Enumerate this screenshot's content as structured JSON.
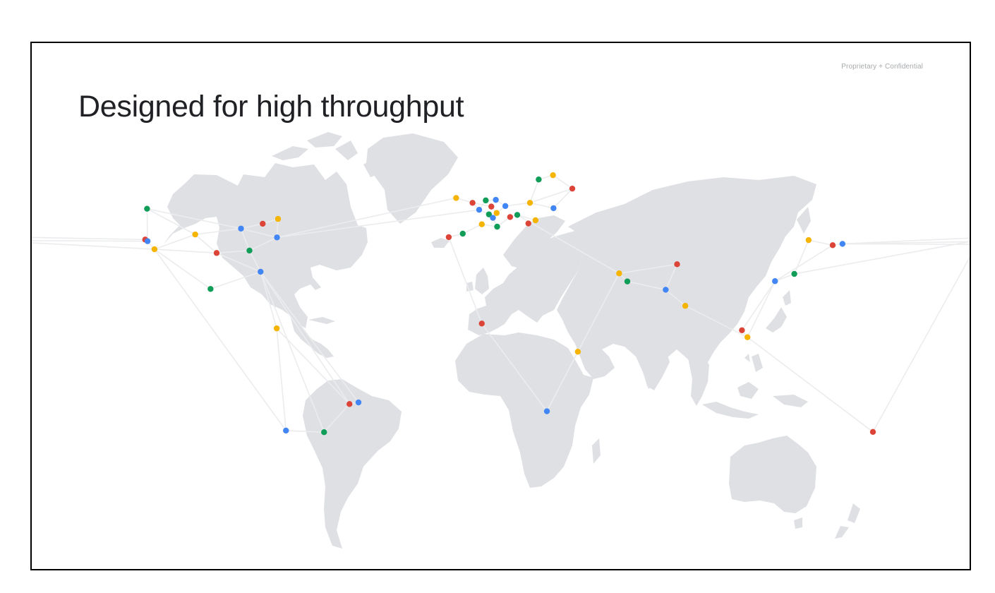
{
  "header": {
    "confidential": "Proprietary + Confidential",
    "title": "Designed for high throughput"
  },
  "map": {
    "colors": {
      "red": "#db4437",
      "blue": "#4285f4",
      "green": "#0f9d58",
      "yellow": "#f4b400",
      "land": "#dfe0e3",
      "link": "#ebecee"
    },
    "nodes": [
      {
        "id": "n0",
        "lon": -123.1,
        "lat": 49.3,
        "color": "green"
      },
      {
        "id": "n1",
        "lon": -123.8,
        "lat": 37.8,
        "color": "red"
      },
      {
        "id": "n2",
        "lon": -122.9,
        "lat": 37.2,
        "color": "blue"
      },
      {
        "id": "n3",
        "lon": -120.3,
        "lat": 34.2,
        "color": "yellow"
      },
      {
        "id": "n4",
        "lon": -104.9,
        "lat": 39.7,
        "color": "yellow"
      },
      {
        "id": "n5",
        "lon": -96.8,
        "lat": 32.8,
        "color": "red"
      },
      {
        "id": "n6",
        "lon": -87.6,
        "lat": 41.9,
        "color": "blue"
      },
      {
        "id": "n7",
        "lon": -84.4,
        "lat": 33.7,
        "color": "green"
      },
      {
        "id": "n8",
        "lon": -80.2,
        "lat": 25.8,
        "color": "blue"
      },
      {
        "id": "n9",
        "lon": -79.4,
        "lat": 43.7,
        "color": "red"
      },
      {
        "id": "n10",
        "lon": -73.6,
        "lat": 45.5,
        "color": "yellow"
      },
      {
        "id": "n11",
        "lon": -74.0,
        "lat": 38.6,
        "color": "blue"
      },
      {
        "id": "n12",
        "lon": -99.1,
        "lat": 19.4,
        "color": "green"
      },
      {
        "id": "n13",
        "lon": -74.1,
        "lat": 4.7,
        "color": "yellow"
      },
      {
        "id": "n14",
        "lon": -46.6,
        "lat": -23.5,
        "color": "red"
      },
      {
        "id": "n15",
        "lon": -43.2,
        "lat": -22.9,
        "color": "blue"
      },
      {
        "id": "n16",
        "lon": -70.6,
        "lat": -33.4,
        "color": "blue"
      },
      {
        "id": "n17",
        "lon": -56.2,
        "lat": -34.0,
        "color": "green"
      },
      {
        "id": "n18",
        "lon": -6.3,
        "lat": 53.3,
        "color": "yellow"
      },
      {
        "id": "n19",
        "lon": -0.1,
        "lat": 51.5,
        "color": "red"
      },
      {
        "id": "n20",
        "lon": 2.4,
        "lat": 48.9,
        "color": "blue"
      },
      {
        "id": "n21",
        "lon": 4.9,
        "lat": 52.4,
        "color": "green"
      },
      {
        "id": "n22",
        "lon": 8.7,
        "lat": 52.6,
        "color": "blue"
      },
      {
        "id": "n23",
        "lon": 7.0,
        "lat": 50.1,
        "color": "red"
      },
      {
        "id": "n24",
        "lon": 6.1,
        "lat": 47.2,
        "color": "green"
      },
      {
        "id": "n25",
        "lon": 9.0,
        "lat": 47.7,
        "color": "yellow"
      },
      {
        "id": "n26",
        "lon": 7.6,
        "lat": 45.9,
        "color": "blue"
      },
      {
        "id": "n27",
        "lon": 3.4,
        "lat": 43.5,
        "color": "yellow"
      },
      {
        "id": "n28",
        "lon": 9.2,
        "lat": 42.6,
        "color": "green"
      },
      {
        "id": "n29",
        "lon": 12.3,
        "lat": 50.3,
        "color": "blue"
      },
      {
        "id": "n30",
        "lon": 14.1,
        "lat": 46.2,
        "color": "red"
      },
      {
        "id": "n31",
        "lon": 16.8,
        "lat": 47.0,
        "color": "green"
      },
      {
        "id": "n32",
        "lon": 21.6,
        "lat": 51.5,
        "color": "yellow"
      },
      {
        "id": "n33",
        "lon": 24.9,
        "lat": 60.2,
        "color": "green"
      },
      {
        "id": "n34",
        "lon": 30.3,
        "lat": 61.8,
        "color": "yellow"
      },
      {
        "id": "n35",
        "lon": 37.6,
        "lat": 56.8,
        "color": "red"
      },
      {
        "id": "n36",
        "lon": 30.5,
        "lat": 49.5,
        "color": "blue"
      },
      {
        "id": "n37",
        "lon": 23.7,
        "lat": 45.0,
        "color": "yellow"
      },
      {
        "id": "n38",
        "lon": 21.0,
        "lat": 43.8,
        "color": "red"
      },
      {
        "id": "n39",
        "lon": -9.1,
        "lat": 38.7,
        "color": "red"
      },
      {
        "id": "n40",
        "lon": -3.8,
        "lat": 40.0,
        "color": "green"
      },
      {
        "id": "n41",
        "lon": 3.4,
        "lat": 6.5,
        "color": "red"
      },
      {
        "id": "n42",
        "lon": 39.7,
        "lat": -4.0,
        "color": "yellow"
      },
      {
        "id": "n43",
        "lon": 28.0,
        "lat": -26.2,
        "color": "blue"
      },
      {
        "id": "n44",
        "lon": 55.3,
        "lat": 25.2,
        "color": "yellow"
      },
      {
        "id": "n45",
        "lon": 58.4,
        "lat": 22.2,
        "color": "green"
      },
      {
        "id": "n46",
        "lon": 72.9,
        "lat": 19.1,
        "color": "blue"
      },
      {
        "id": "n47",
        "lon": 77.2,
        "lat": 28.6,
        "color": "red"
      },
      {
        "id": "n48",
        "lon": 80.3,
        "lat": 13.1,
        "color": "yellow"
      },
      {
        "id": "n49",
        "lon": 101.7,
        "lat": 4.0,
        "color": "red"
      },
      {
        "id": "n50",
        "lon": 103.8,
        "lat": 1.4,
        "color": "yellow"
      },
      {
        "id": "n51",
        "lon": 114.2,
        "lat": 22.3,
        "color": "blue"
      },
      {
        "id": "n52",
        "lon": 121.5,
        "lat": 25.0,
        "color": "green"
      },
      {
        "id": "n53",
        "lon": 126.9,
        "lat": 37.6,
        "color": "yellow"
      },
      {
        "id": "n54",
        "lon": 136.0,
        "lat": 35.7,
        "color": "red"
      },
      {
        "id": "n55",
        "lon": 139.7,
        "lat": 36.2,
        "color": "blue"
      },
      {
        "id": "n56",
        "lon": 151.2,
        "lat": -33.9,
        "color": "red"
      }
    ],
    "links": [
      [
        "n0",
        "n2"
      ],
      [
        "n0",
        "n4"
      ],
      [
        "n0",
        "n6"
      ],
      [
        "n2",
        "n3"
      ],
      [
        "n3",
        "n4"
      ],
      [
        "n3",
        "n5"
      ],
      [
        "n4",
        "n6"
      ],
      [
        "n4",
        "n5"
      ],
      [
        "n5",
        "n7"
      ],
      [
        "n6",
        "n7"
      ],
      [
        "n6",
        "n9"
      ],
      [
        "n9",
        "n10"
      ],
      [
        "n10",
        "n11"
      ],
      [
        "n6",
        "n11"
      ],
      [
        "n7",
        "n11"
      ],
      [
        "n7",
        "n8"
      ],
      [
        "n5",
        "n8"
      ],
      [
        "n3",
        "n12"
      ],
      [
        "n12",
        "n8"
      ],
      [
        "n8",
        "n13"
      ],
      [
        "n8",
        "n15"
      ],
      [
        "n8",
        "n14"
      ],
      [
        "n8",
        "n17"
      ],
      [
        "n13",
        "n16"
      ],
      [
        "n13",
        "n14"
      ],
      [
        "n16",
        "n17"
      ],
      [
        "n17",
        "n14"
      ],
      [
        "n14",
        "n15"
      ],
      [
        "n3",
        "n16"
      ],
      [
        "n11",
        "n18"
      ],
      [
        "n11",
        "n20"
      ],
      [
        "n18",
        "n19"
      ],
      [
        "n19",
        "n20"
      ],
      [
        "n20",
        "n21"
      ],
      [
        "n21",
        "n22"
      ],
      [
        "n22",
        "n29"
      ],
      [
        "n19",
        "n23"
      ],
      [
        "n20",
        "n24"
      ],
      [
        "n24",
        "n26"
      ],
      [
        "n23",
        "n25"
      ],
      [
        "n25",
        "n29"
      ],
      [
        "n29",
        "n32"
      ],
      [
        "n32",
        "n33"
      ],
      [
        "n33",
        "n34"
      ],
      [
        "n34",
        "n35"
      ],
      [
        "n32",
        "n35"
      ],
      [
        "n32",
        "n36"
      ],
      [
        "n35",
        "n36"
      ],
      [
        "n30",
        "n31"
      ],
      [
        "n31",
        "n37"
      ],
      [
        "n37",
        "n38"
      ],
      [
        "n28",
        "n30"
      ],
      [
        "n26",
        "n28"
      ],
      [
        "n27",
        "n28"
      ],
      [
        "n39",
        "n40"
      ],
      [
        "n40",
        "n27"
      ],
      [
        "n39",
        "n41"
      ],
      [
        "n41",
        "n43"
      ],
      [
        "n43",
        "n42"
      ],
      [
        "n42",
        "n44"
      ],
      [
        "n42",
        "n43"
      ],
      [
        "n31",
        "n44"
      ],
      [
        "n44",
        "n45"
      ],
      [
        "n45",
        "n46"
      ],
      [
        "n44",
        "n47"
      ],
      [
        "n46",
        "n47"
      ],
      [
        "n46",
        "n48"
      ],
      [
        "n48",
        "n50"
      ],
      [
        "n49",
        "n50"
      ],
      [
        "n50",
        "n51"
      ],
      [
        "n51",
        "n52"
      ],
      [
        "n52",
        "n53"
      ],
      [
        "n53",
        "n54"
      ],
      [
        "n54",
        "n55"
      ],
      [
        "n51",
        "n54"
      ],
      [
        "n50",
        "n56"
      ],
      [
        "n49",
        "n51"
      ]
    ],
    "edge_links": [
      {
        "from": "n1",
        "side": "left",
        "lat": 38.6
      },
      {
        "from": "n2",
        "side": "left",
        "lat": 37.4
      },
      {
        "from": "n3",
        "side": "left",
        "lat": 36.6
      },
      {
        "from": "n55",
        "side": "right",
        "lat": 38.4
      },
      {
        "from": "n55",
        "side": "right",
        "lat": 37.0
      },
      {
        "from": "n55",
        "side": "right",
        "lat": 36.0
      },
      {
        "from": "n52",
        "side": "right",
        "lat": 37.2
      },
      {
        "from": "n56",
        "side": "right",
        "lat": 33.0
      }
    ]
  }
}
